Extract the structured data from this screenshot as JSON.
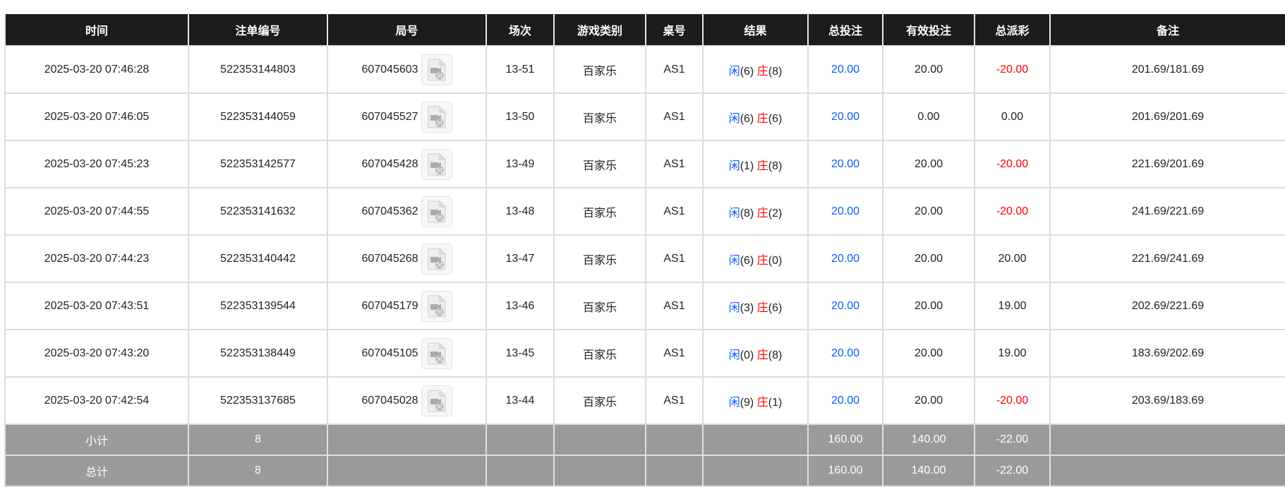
{
  "headers": [
    "时间",
    "注单编号",
    "局号",
    "场次",
    "游戏类别",
    "桌号",
    "结果",
    "总投注",
    "有效投注",
    "总派彩",
    "备注"
  ],
  "rows": [
    {
      "time": "2025-03-20 07:46:28",
      "order": "522353144803",
      "round": "607045603",
      "session": "13-51",
      "game": "百家乐",
      "table": "AS1",
      "player_label": "闲",
      "player": "(6)",
      "banker_label": "庄",
      "banker": "(8)",
      "bet": "20.00",
      "valid": "20.00",
      "payout": "-20.00",
      "payout_neg": true,
      "note": "201.69/181.69"
    },
    {
      "time": "2025-03-20 07:46:05",
      "order": "522353144059",
      "round": "607045527",
      "session": "13-50",
      "game": "百家乐",
      "table": "AS1",
      "player_label": "闲",
      "player": "(6)",
      "banker_label": "庄",
      "banker": "(6)",
      "bet": "20.00",
      "valid": "0.00",
      "payout": "0.00",
      "payout_neg": false,
      "note": "201.69/201.69"
    },
    {
      "time": "2025-03-20 07:45:23",
      "order": "522353142577",
      "round": "607045428",
      "session": "13-49",
      "game": "百家乐",
      "table": "AS1",
      "player_label": "闲",
      "player": "(1)",
      "banker_label": "庄",
      "banker": "(8)",
      "bet": "20.00",
      "valid": "20.00",
      "payout": "-20.00",
      "payout_neg": true,
      "note": "221.69/201.69"
    },
    {
      "time": "2025-03-20 07:44:55",
      "order": "522353141632",
      "round": "607045362",
      "session": "13-48",
      "game": "百家乐",
      "table": "AS1",
      "player_label": "闲",
      "player": "(8)",
      "banker_label": "庄",
      "banker": "(2)",
      "bet": "20.00",
      "valid": "20.00",
      "payout": "-20.00",
      "payout_neg": true,
      "note": "241.69/221.69"
    },
    {
      "time": "2025-03-20 07:44:23",
      "order": "522353140442",
      "round": "607045268",
      "session": "13-47",
      "game": "百家乐",
      "table": "AS1",
      "player_label": "闲",
      "player": "(6)",
      "banker_label": "庄",
      "banker": "(0)",
      "bet": "20.00",
      "valid": "20.00",
      "payout": "20.00",
      "payout_neg": false,
      "note": "221.69/241.69"
    },
    {
      "time": "2025-03-20 07:43:51",
      "order": "522353139544",
      "round": "607045179",
      "session": "13-46",
      "game": "百家乐",
      "table": "AS1",
      "player_label": "闲",
      "player": "(3)",
      "banker_label": "庄",
      "banker": "(6)",
      "bet": "20.00",
      "valid": "20.00",
      "payout": "19.00",
      "payout_neg": false,
      "note": "202.69/221.69"
    },
    {
      "time": "2025-03-20 07:43:20",
      "order": "522353138449",
      "round": "607045105",
      "session": "13-45",
      "game": "百家乐",
      "table": "AS1",
      "player_label": "闲",
      "player": "(0)",
      "banker_label": "庄",
      "banker": "(8)",
      "bet": "20.00",
      "valid": "20.00",
      "payout": "19.00",
      "payout_neg": false,
      "note": "183.69/202.69"
    },
    {
      "time": "2025-03-20 07:42:54",
      "order": "522353137685",
      "round": "607045028",
      "session": "13-44",
      "game": "百家乐",
      "table": "AS1",
      "player_label": "闲",
      "player": "(9)",
      "banker_label": "庄",
      "banker": "(1)",
      "bet": "20.00",
      "valid": "20.00",
      "payout": "-20.00",
      "payout_neg": true,
      "note": "203.69/183.69"
    }
  ],
  "subtotal": {
    "label": "小计",
    "count": "8",
    "bet": "160.00",
    "valid": "140.00",
    "payout": "-22.00"
  },
  "total": {
    "label": "总计",
    "count": "8",
    "bet": "160.00",
    "valid": "140.00",
    "payout": "-22.00"
  },
  "colors": {
    "header_bg": "#1c1c1c",
    "summary_bg": "#9a9a9a",
    "bet_blue": "#0a5cff",
    "negative_red": "#ff0000"
  },
  "icons": {
    "round_replay": "video-file-icon"
  }
}
